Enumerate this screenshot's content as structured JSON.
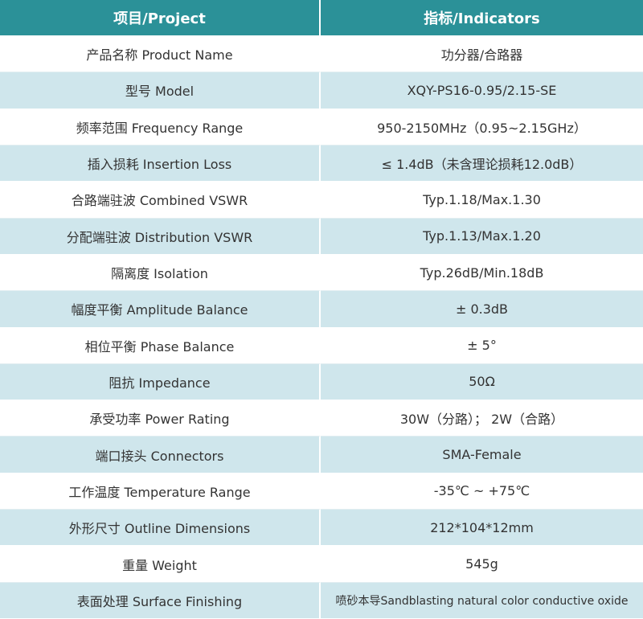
{
  "table": {
    "header": [
      "项目/Project",
      "指标/Indicators"
    ],
    "rows": [
      [
        "产品名称 Product Name",
        "功分器/合路器"
      ],
      [
        "型号 Model",
        "XQY-PS16-0.95/2.15-SE"
      ],
      [
        "频率范围 Frequency Range",
        "950-2150MHz（0.95~2.15GHz）"
      ],
      [
        "插入损耗 Insertion Loss",
        "≤ 1.4dB（未含理论损耗12.0dB）"
      ],
      [
        "合路端驻波 Combined VSWR",
        "Typ.1.18/Max.1.30"
      ],
      [
        "分配端驻波 Distribution VSWR",
        "Typ.1.13/Max.1.20"
      ],
      [
        "隔离度 Isolation",
        "Typ.26dB/Min.18dB"
      ],
      [
        "幅度平衡 Amplitude Balance",
        "± 0.3dB"
      ],
      [
        "相位平衡 Phase Balance",
        "± 5°"
      ],
      [
        "阻抗 Impedance",
        "50Ω"
      ],
      [
        "承受功率 Power Rating",
        "30W（分路）； 2W（合路）"
      ],
      [
        "端口接头 Connectors",
        "SMA-Female"
      ],
      [
        "工作温度 Temperature Range",
        "-35℃ ~ +75℃"
      ],
      [
        "外形尺寸 Outline Dimensions",
        "212*104*12mm"
      ],
      [
        "重量 Weight",
        "545g"
      ],
      [
        "表面处理 Surface Finishing",
        "喷砂本导Sandblasting natural color conductive oxide"
      ]
    ]
  }
}
